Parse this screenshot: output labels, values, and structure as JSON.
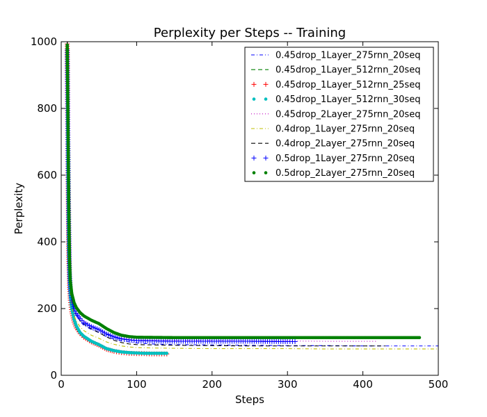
{
  "chart_data": {
    "type": "line",
    "title": "Perplexity per Steps -- Training",
    "xlabel": "Steps",
    "ylabel": "Perplexity",
    "xlim": [
      0,
      500
    ],
    "ylim": [
      0,
      1000
    ],
    "xticks": [
      "0",
      "100",
      "200",
      "300",
      "400",
      "500"
    ],
    "yticks": [
      "0",
      "200",
      "400",
      "600",
      "800",
      "1000"
    ],
    "grid": false,
    "legend_position": "top-right",
    "series": [
      {
        "name": "0.45drop_1Layer_275rnn_20seq",
        "color": "#0000ff",
        "style": "dashdot",
        "x": [
          8,
          9,
          10,
          11,
          12,
          14,
          17,
          20,
          25,
          30,
          40,
          50,
          60,
          70,
          80,
          90,
          100,
          120,
          150,
          200,
          250,
          300,
          350,
          400,
          450,
          500
        ],
        "y": [
          1000,
          640,
          380,
          290,
          250,
          220,
          195,
          180,
          162,
          150,
          137,
          128,
          116,
          108,
          103,
          100,
          97,
          94,
          92,
          91,
          90,
          89,
          89,
          88,
          88,
          88
        ]
      },
      {
        "name": "0.45drop_1Layer_512rnn_20seq",
        "color": "#008000",
        "style": "dashed",
        "x": [
          8,
          9,
          10,
          11,
          12,
          14,
          17,
          20,
          25,
          30,
          40,
          50,
          60,
          70,
          80,
          90,
          100,
          110,
          120,
          130,
          140
        ],
        "y": [
          1000,
          600,
          360,
          270,
          225,
          190,
          160,
          142,
          125,
          114,
          100,
          90,
          78,
          72,
          68,
          66,
          65,
          65,
          64,
          64,
          64
        ]
      },
      {
        "name": "0.45drop_1Layer_512rnn_25seq",
        "color": "#ff0000",
        "style": "plus",
        "x": [
          8,
          9,
          10,
          11,
          12,
          14,
          17,
          20,
          25,
          30,
          40,
          50,
          60,
          70,
          80,
          90,
          100,
          110,
          120,
          130,
          140
        ],
        "y": [
          1000,
          600,
          360,
          270,
          225,
          190,
          160,
          142,
          125,
          114,
          100,
          90,
          78,
          72,
          68,
          66,
          65,
          65,
          64,
          64,
          64
        ]
      },
      {
        "name": "0.45drop_1Layer_512rnn_30seq",
        "color": "#00bfbf",
        "style": "dot",
        "x": [
          8,
          9,
          10,
          11,
          12,
          14,
          17,
          20,
          25,
          30,
          40,
          50,
          60,
          70,
          80,
          90,
          100,
          110,
          120,
          130,
          140
        ],
        "y": [
          990,
          620,
          380,
          290,
          240,
          200,
          168,
          148,
          128,
          117,
          102,
          92,
          80,
          74,
          70,
          68,
          67,
          66,
          66,
          66,
          66
        ]
      },
      {
        "name": "0.45drop_2Layer_275rnn_20seq",
        "color": "#bf00bf",
        "style": "dotted",
        "x": [
          8,
          9,
          10,
          11,
          12,
          14,
          17,
          20,
          25,
          30,
          40,
          50,
          60,
          70,
          80,
          90,
          100,
          150,
          200,
          250,
          300,
          350,
          400,
          420
        ],
        "y": [
          1000,
          660,
          400,
          305,
          265,
          232,
          205,
          190,
          173,
          162,
          148,
          138,
          125,
          117,
          111,
          108,
          106,
          104,
          104,
          103,
          103,
          102,
          102,
          102
        ]
      },
      {
        "name": "0.4drop_1Layer_275rnn_20seq",
        "color": "#bfbf00",
        "style": "dashdot",
        "x": [
          8,
          9,
          10,
          11,
          12,
          14,
          17,
          20,
          25,
          30,
          40,
          50,
          60,
          70,
          80,
          90,
          100,
          120,
          150,
          200,
          250,
          300,
          350,
          400,
          450,
          500
        ],
        "y": [
          1000,
          630,
          370,
          280,
          238,
          205,
          178,
          163,
          145,
          134,
          120,
          111,
          100,
          93,
          88,
          85,
          83,
          82,
          81,
          80,
          80,
          80,
          79,
          79,
          79,
          79
        ]
      },
      {
        "name": "0.4drop_2Layer_275rnn_20seq",
        "color": "#000000",
        "style": "dashed",
        "x": [
          8,
          9,
          10,
          11,
          12,
          14,
          17,
          20,
          25,
          30,
          40,
          50,
          60,
          70,
          80,
          90,
          100,
          150,
          200,
          250,
          300,
          350,
          400,
          430
        ],
        "y": [
          1000,
          650,
          390,
          295,
          255,
          222,
          196,
          180,
          163,
          153,
          139,
          128,
          115,
          105,
          98,
          94,
          92,
          90,
          89,
          88,
          88,
          88,
          88,
          88
        ]
      },
      {
        "name": "0.5drop_1Layer_275rnn_20seq",
        "color": "#0000ff",
        "style": "plus",
        "x": [
          8,
          9,
          10,
          11,
          12,
          14,
          17,
          20,
          25,
          30,
          40,
          50,
          60,
          70,
          80,
          90,
          100,
          150,
          200,
          250,
          300,
          310
        ],
        "y": [
          975,
          680,
          455,
          310,
          260,
          225,
          200,
          185,
          170,
          158,
          146,
          137,
          124,
          115,
          109,
          106,
          104,
          102,
          102,
          102,
          101,
          101
        ]
      },
      {
        "name": "0.5drop_2Layer_275rnn_20seq",
        "color": "#008000",
        "style": "dot",
        "x": [
          8,
          9,
          10,
          11,
          12,
          14,
          17,
          20,
          25,
          30,
          40,
          50,
          60,
          70,
          80,
          90,
          100,
          150,
          200,
          250,
          300,
          350,
          400,
          450,
          475
        ],
        "y": [
          990,
          760,
          515,
          350,
          285,
          245,
          218,
          203,
          188,
          178,
          165,
          155,
          140,
          128,
          120,
          116,
          114,
          113,
          113,
          113,
          113,
          113,
          113,
          113,
          113
        ]
      }
    ]
  }
}
